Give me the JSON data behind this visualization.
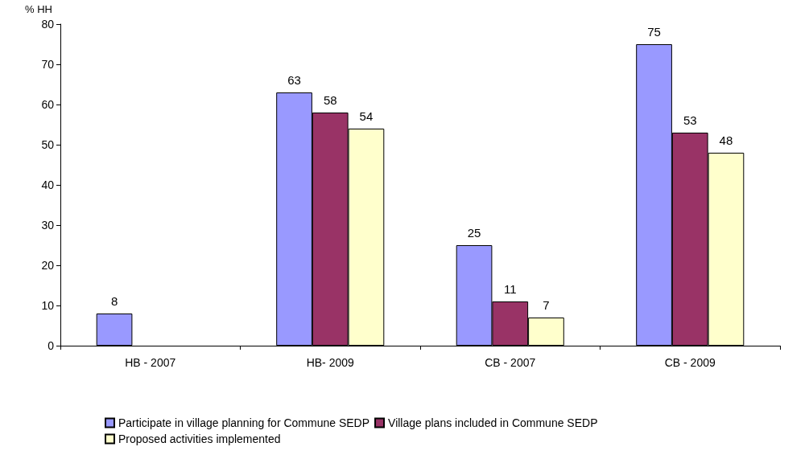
{
  "chart_data": {
    "type": "bar",
    "ylabel": "% HH",
    "categories": [
      "HB - 2007",
      "HB- 2009",
      "CB - 2007",
      "CB - 2009"
    ],
    "series": [
      {
        "name": "Participate in village planning for Commune SEDP",
        "color": "#9999ff",
        "values": [
          8,
          63,
          25,
          75
        ]
      },
      {
        "name": "Village plans included in Commune SEDP",
        "color": "#993366",
        "values": [
          null,
          58,
          11,
          53
        ]
      },
      {
        "name": "Proposed activities implemented",
        "color": "#ffffcc",
        "values": [
          null,
          54,
          7,
          48
        ]
      }
    ],
    "ylim": [
      0,
      80
    ],
    "yticks": [
      0,
      10,
      20,
      30,
      40,
      50,
      60,
      70,
      80
    ],
    "grid": false,
    "legend": "bottom",
    "data_labels": true
  }
}
